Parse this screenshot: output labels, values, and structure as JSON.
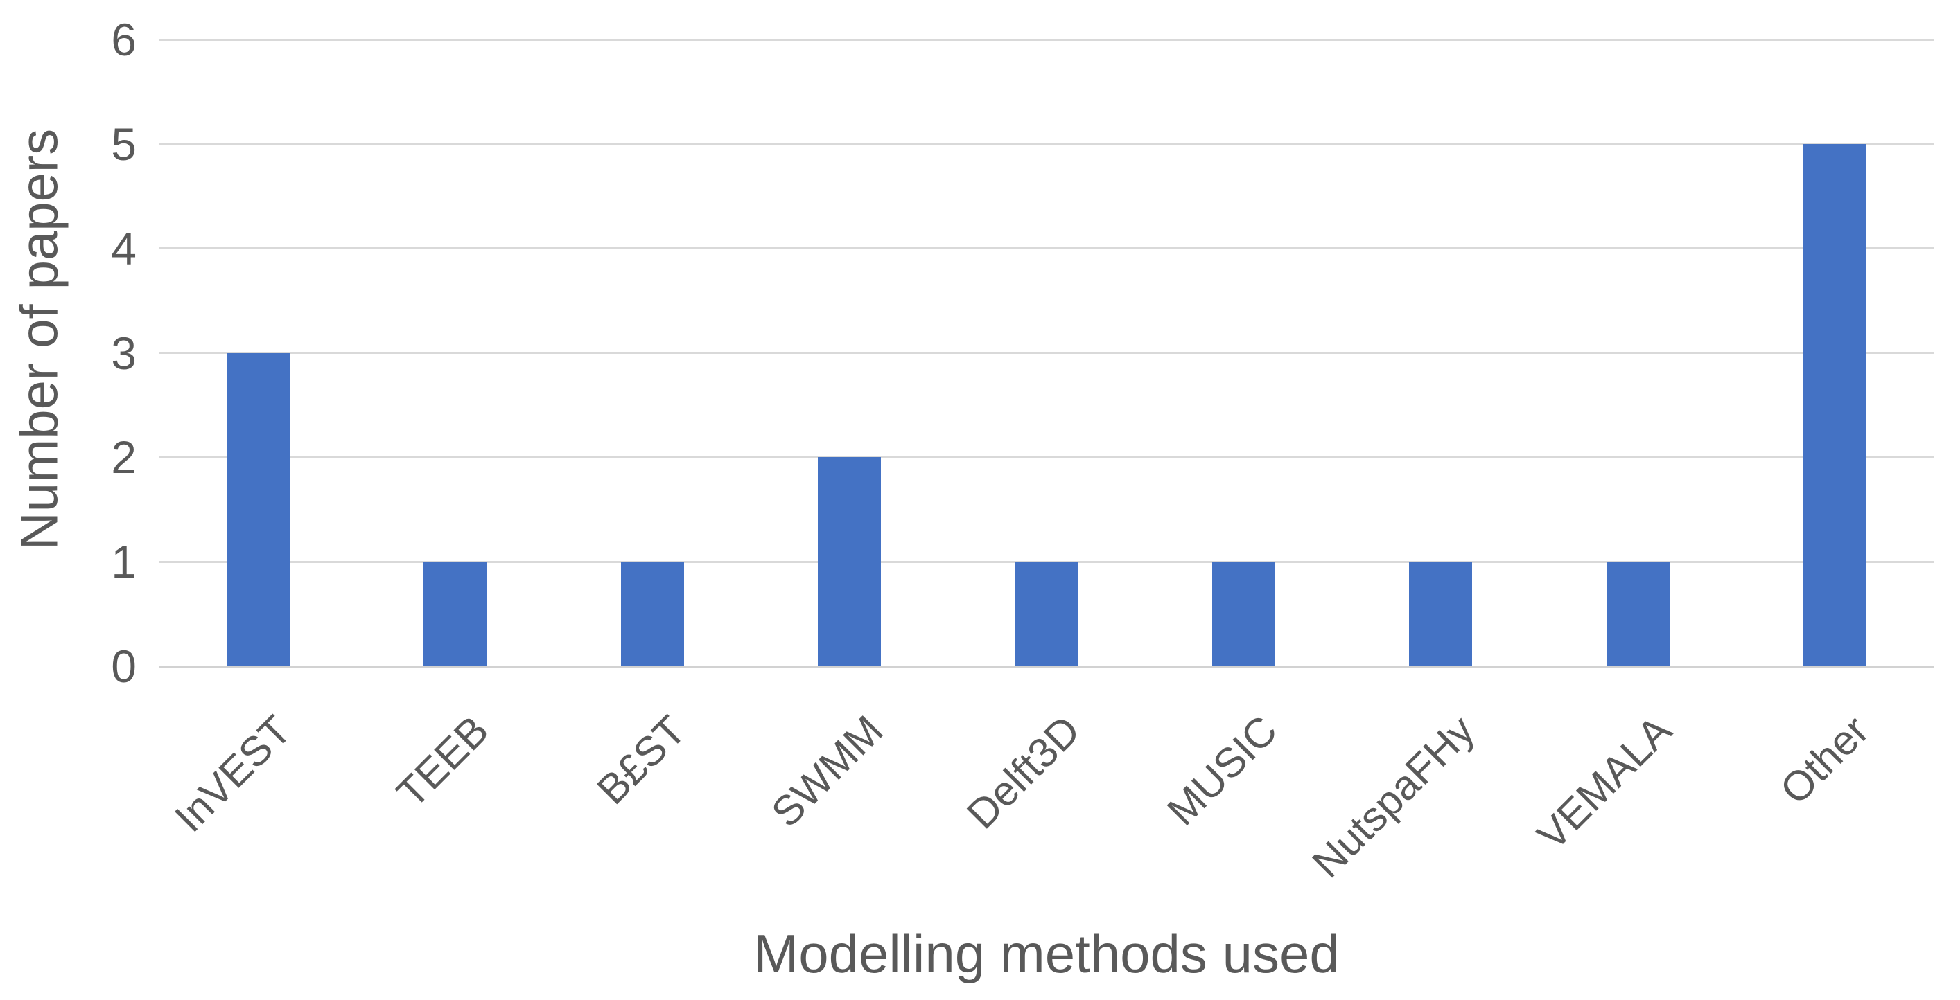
{
  "chart_data": {
    "type": "bar",
    "categories": [
      "InVEST",
      "TEEB",
      "B£ST",
      "SWMM",
      "Delft3D",
      "MUSIC",
      "NutspaFHy",
      "VEMALA",
      "Other"
    ],
    "values": [
      3,
      1,
      1,
      2,
      1,
      1,
      1,
      1,
      5
    ],
    "title": "",
    "xlabel": "Modelling methods used",
    "ylabel": "Number of papers",
    "ylim": [
      0,
      6
    ],
    "yticks": [
      0,
      1,
      2,
      3,
      4,
      5,
      6
    ],
    "grid": "horizontal-only",
    "legend": "none",
    "colors": {
      "bar": "#4472C4",
      "gridline": "#D9D9D9",
      "axis_line": "#D2D2D2",
      "text": "#595959",
      "background": "#FFFFFF"
    }
  }
}
